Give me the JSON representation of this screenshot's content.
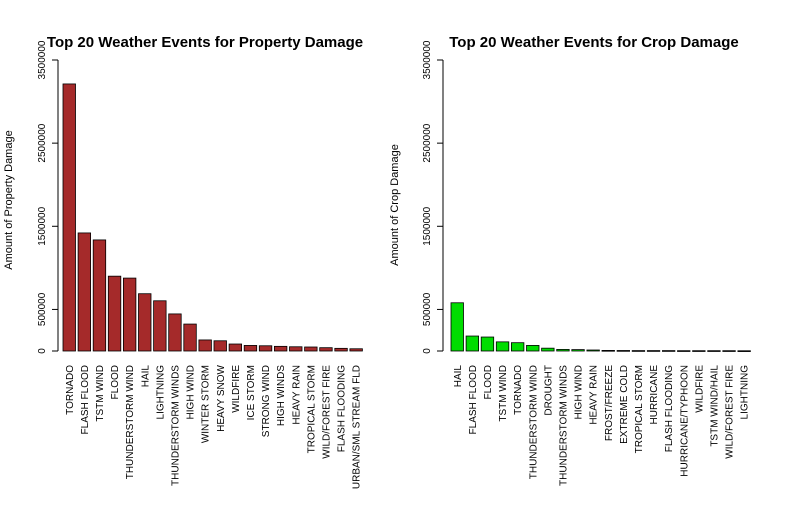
{
  "chart_data": [
    {
      "type": "bar",
      "title": "Top 20 Weather Events for Property Damage",
      "ylabel": "Amount of Property Damage",
      "xlabel": "",
      "ylim": [
        0,
        3500000
      ],
      "yticks": [
        0,
        500000,
        1500000,
        2500000,
        3500000
      ],
      "ytick_labels": [
        "0",
        "500000",
        "1500000",
        "2500000",
        "3500000"
      ],
      "bar_color": "#a52a2a",
      "categories": [
        "TORNADO",
        "FLASH FLOOD",
        "TSTM WIND",
        "FLOOD",
        "THUNDERSTORM WIND",
        "HAIL",
        "LIGHTNING",
        "THUNDERSTORM WINDS",
        "HIGH WIND",
        "WINTER STORM",
        "HEAVY SNOW",
        "WILDFIRE",
        "ICE STORM",
        "STRONG WIND",
        "HIGH WINDS",
        "HEAVY RAIN",
        "TROPICAL STORM",
        "WILD/FOREST FIRE",
        "FLASH FLOODING",
        "URBAN/SML STREAM FLD"
      ],
      "values": [
        3212000,
        1420000,
        1336000,
        900000,
        877000,
        689000,
        604000,
        446000,
        324000,
        133000,
        123000,
        84000,
        67000,
        63000,
        56000,
        51000,
        48000,
        40000,
        32000,
        27000
      ]
    },
    {
      "type": "bar",
      "title": "Top 20 Weather Events for Crop Damage",
      "ylabel": "Amount of  Crop Damage",
      "xlabel": "",
      "ylim": [
        0,
        3500000
      ],
      "yticks": [
        0,
        500000,
        1500000,
        2500000,
        3500000
      ],
      "ytick_labels": [
        "0",
        "500000",
        "1500000",
        "2500000",
        "3500000"
      ],
      "bar_color": "#00dd00",
      "categories": [
        "HAIL",
        "FLASH FLOOD",
        "FLOOD",
        "TSTM WIND",
        "TORNADO",
        "THUNDERSTORM WIND",
        "DROUGHT",
        "THUNDERSTORM WINDS",
        "HIGH WIND",
        "HEAVY RAIN",
        "FROST/FREEZE",
        "EXTREME COLD",
        "TROPICAL STORM",
        "HURRICANE",
        "FLASH FLOODING",
        "HURRICANE/TYPHOON",
        "WILDFIRE",
        "TSTM WIND/HAIL",
        "WILD/FOREST FIRE",
        "LIGHTNING"
      ],
      "values": [
        580000,
        180000,
        168000,
        110000,
        100000,
        67000,
        34000,
        19000,
        17000,
        12000,
        7000,
        6000,
        5000,
        5000,
        5000,
        4000,
        4000,
        4000,
        4000,
        3000
      ]
    }
  ]
}
